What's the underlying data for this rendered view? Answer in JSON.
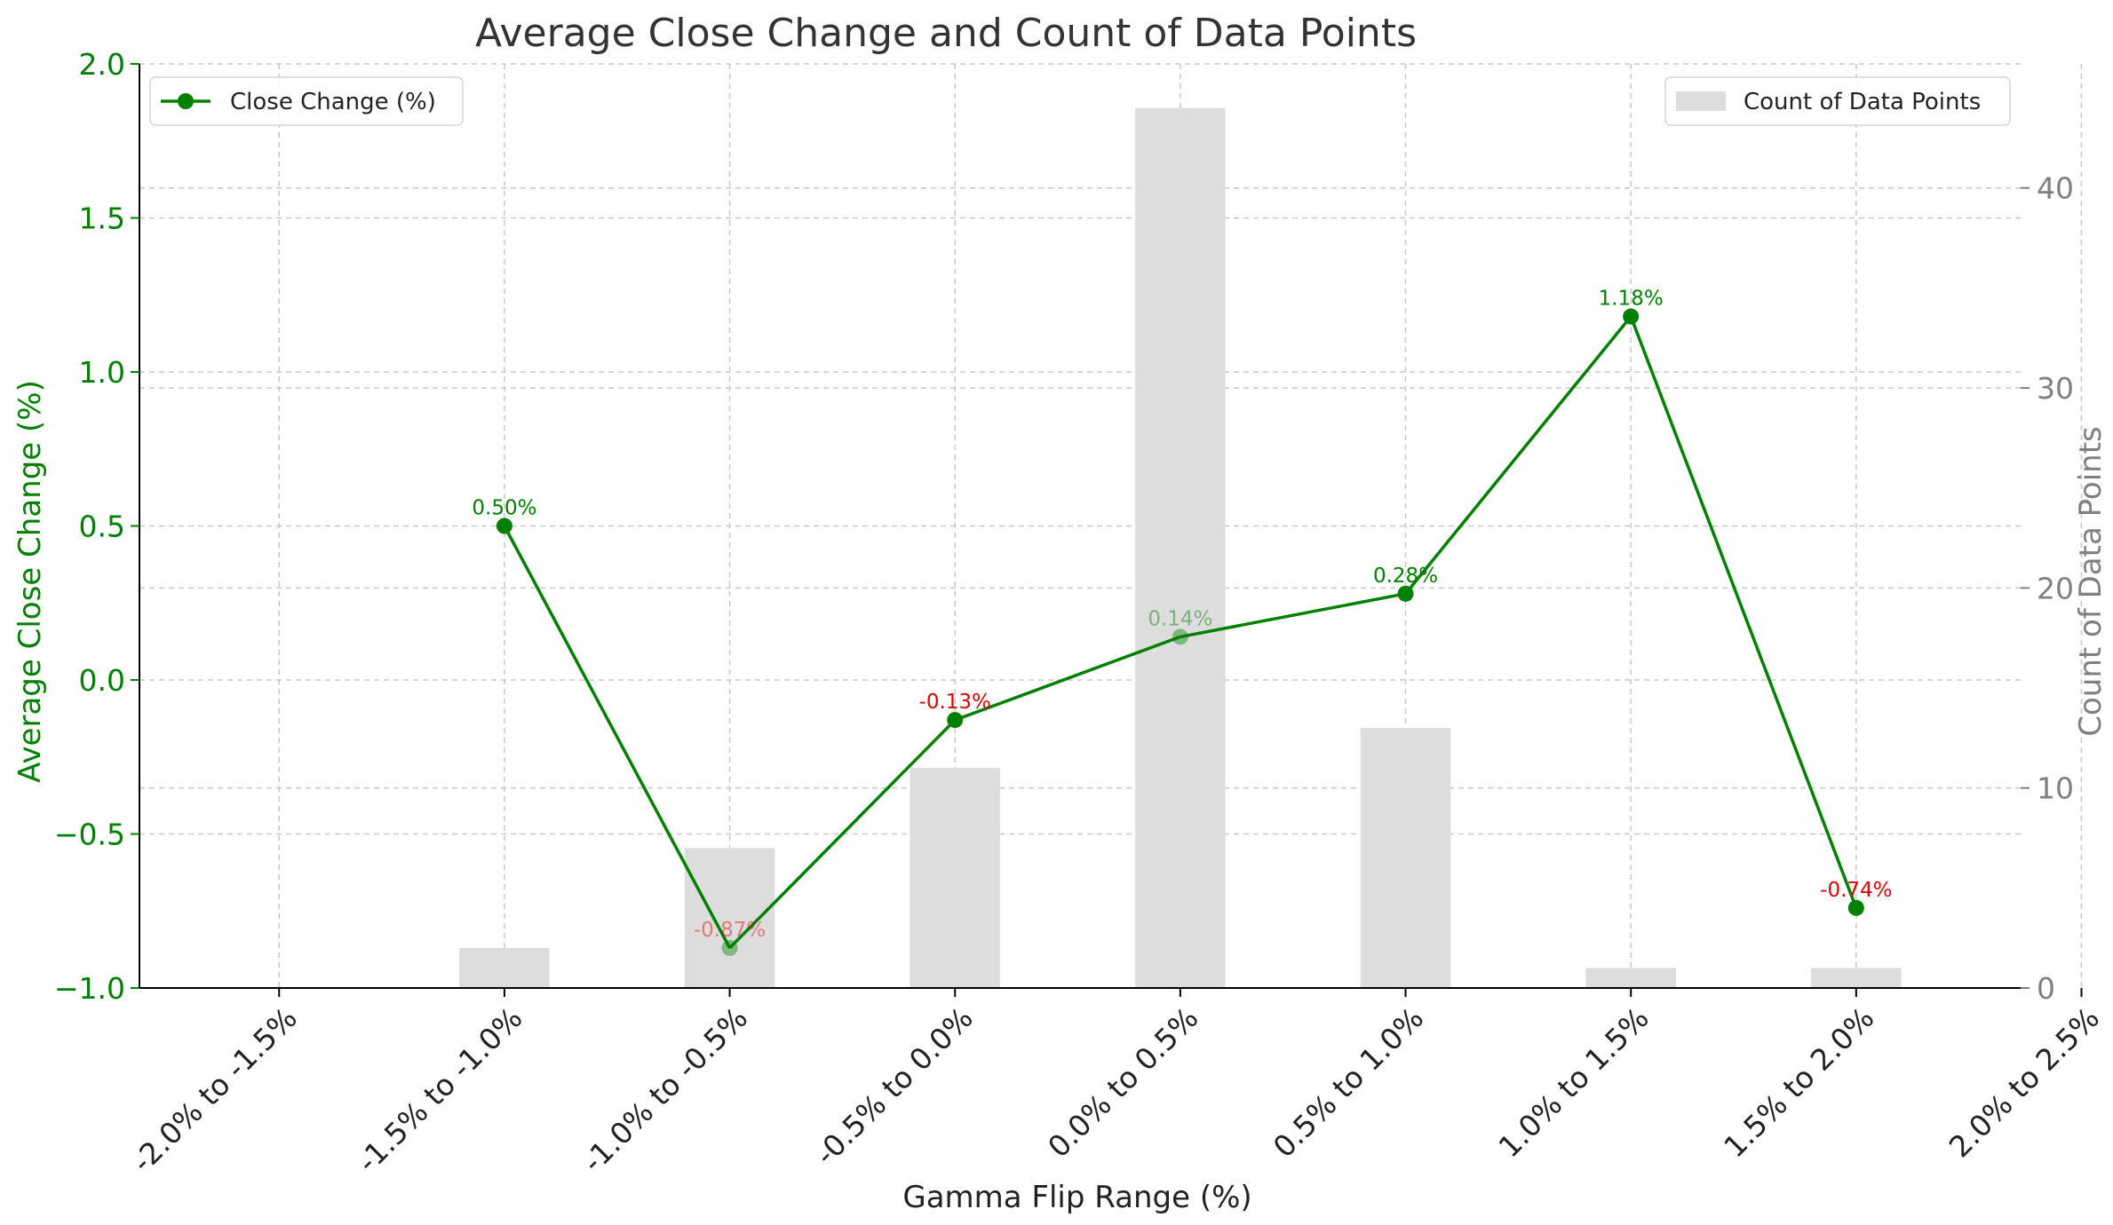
{
  "chart_data": {
    "type": "bar",
    "title": "Average Close Change and Count of Data Points",
    "xlabel": "Gamma Flip Range (%)",
    "ylabel_left": "Average Close Change (%)",
    "ylabel_right": "Count of Data Points",
    "categories": [
      "-2.0% to -1.5%",
      "-1.5% to -1.0%",
      "-1.0% to -0.5%",
      "-0.5% to 0.0%",
      "0.0% to 0.5%",
      "0.5% to 1.0%",
      "1.0% to 1.5%",
      "1.5% to 2.0%",
      "2.0% to 2.5%"
    ],
    "series": [
      {
        "name": "Count of Data Points",
        "kind": "bar",
        "axis": "right",
        "color": "#dddddd",
        "values": [
          0,
          2,
          7,
          11,
          44,
          13,
          1,
          1,
          0
        ]
      },
      {
        "name": "Close Change (%)",
        "kind": "line",
        "axis": "left",
        "color": "#008000",
        "values": [
          null,
          0.5,
          -0.87,
          -0.13,
          0.14,
          0.28,
          1.18,
          -0.74,
          null
        ],
        "labels": [
          null,
          "0.50%",
          "-0.87%",
          "-0.13%",
          "0.14%",
          "0.28%",
          "1.18%",
          "-0.74%",
          null
        ]
      }
    ],
    "ylim_left": [
      -1.0,
      2.0
    ],
    "yticks_left": [
      -1.0,
      -0.5,
      0.0,
      0.5,
      1.0,
      1.5,
      2.0
    ],
    "yticklabels_left": [
      "−1.0",
      "−0.5",
      "0.0",
      "0.5",
      "1.0",
      "1.5",
      "2.0"
    ],
    "ylim_right": [
      0,
      46.2
    ],
    "yticks_right": [
      0,
      10,
      20,
      30,
      40
    ],
    "grid": true,
    "legend_left_position": "upper-left",
    "legend_right_position": "upper-right",
    "colors": {
      "positive_label": "#008000",
      "negative_label": "#e00000",
      "left_axis": "#008000",
      "right_axis": "#808080",
      "bar": "#dddddd"
    }
  }
}
